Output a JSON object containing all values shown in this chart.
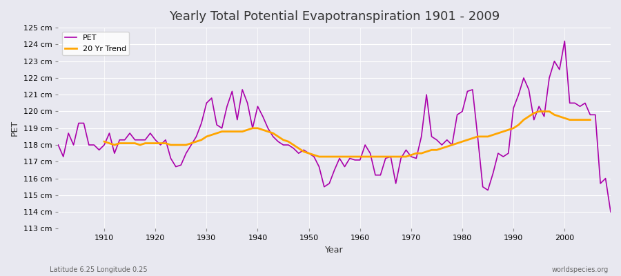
{
  "title": "Yearly Total Potential Evapotranspiration 1901 - 2009",
  "xlabel": "Year",
  "ylabel": "PET",
  "subtitle": "Latitude 6.25 Longitude 0.25",
  "watermark": "worldspecies.org",
  "pet_color": "#AA00AA",
  "trend_color": "#FFA500",
  "background_color": "#E8E8F0",
  "grid_color": "#FFFFFF",
  "ylim": [
    113,
    125
  ],
  "xlim": [
    1901,
    2009
  ],
  "ytick_labels": [
    "113 cm",
    "114 cm",
    "115 cm",
    "116 cm",
    "117 cm",
    "118 cm",
    "119 cm",
    "120 cm",
    "121 cm",
    "122 cm",
    "123 cm",
    "124 cm",
    "125 cm"
  ],
  "years": [
    1901,
    1902,
    1903,
    1904,
    1905,
    1906,
    1907,
    1908,
    1909,
    1910,
    1911,
    1912,
    1913,
    1914,
    1915,
    1916,
    1917,
    1918,
    1919,
    1920,
    1921,
    1922,
    1923,
    1924,
    1925,
    1926,
    1927,
    1928,
    1929,
    1930,
    1931,
    1932,
    1933,
    1934,
    1935,
    1936,
    1937,
    1938,
    1939,
    1940,
    1941,
    1942,
    1943,
    1944,
    1945,
    1946,
    1947,
    1948,
    1949,
    1950,
    1951,
    1952,
    1953,
    1954,
    1955,
    1956,
    1957,
    1958,
    1959,
    1960,
    1961,
    1962,
    1963,
    1964,
    1965,
    1966,
    1967,
    1968,
    1969,
    1970,
    1971,
    1972,
    1973,
    1974,
    1975,
    1976,
    1977,
    1978,
    1979,
    1980,
    1981,
    1982,
    1983,
    1984,
    1985,
    1986,
    1987,
    1988,
    1989,
    1990,
    1991,
    1992,
    1993,
    1994,
    1995,
    1996,
    1997,
    1998,
    1999,
    2000,
    2001,
    2002,
    2003,
    2004,
    2005,
    2006,
    2007,
    2008,
    2009
  ],
  "pet_values": [
    118.0,
    117.3,
    118.7,
    118.0,
    119.3,
    119.3,
    118.0,
    118.0,
    117.7,
    118.0,
    118.7,
    117.5,
    118.3,
    118.3,
    118.7,
    118.3,
    118.3,
    118.3,
    118.7,
    118.3,
    118.0,
    118.3,
    117.2,
    116.7,
    116.8,
    117.5,
    118.0,
    118.5,
    119.3,
    120.5,
    120.8,
    119.2,
    119.0,
    120.3,
    121.2,
    119.5,
    121.3,
    120.5,
    119.0,
    120.3,
    119.7,
    119.0,
    118.5,
    118.2,
    118.0,
    118.0,
    117.8,
    117.5,
    117.7,
    117.5,
    117.3,
    116.7,
    115.5,
    115.7,
    116.5,
    117.2,
    116.7,
    117.2,
    117.1,
    117.1,
    118.0,
    117.5,
    116.2,
    116.2,
    117.2,
    117.3,
    115.7,
    117.2,
    117.7,
    117.3,
    117.2,
    118.5,
    121.0,
    118.5,
    118.3,
    118.0,
    118.3,
    118.0,
    119.8,
    120.0,
    121.2,
    121.3,
    118.5,
    115.5,
    115.3,
    116.3,
    117.5,
    117.3,
    117.5,
    120.2,
    121.0,
    122.0,
    121.3,
    119.5,
    120.3,
    119.7,
    122.0,
    123.0,
    122.5,
    124.2,
    120.5,
    120.5,
    120.3,
    120.5,
    119.8,
    119.8,
    115.7,
    116.0,
    114.0
  ],
  "trend_years": [
    1910,
    1911,
    1912,
    1913,
    1914,
    1915,
    1916,
    1917,
    1918,
    1919,
    1920,
    1921,
    1922,
    1923,
    1924,
    1925,
    1926,
    1927,
    1928,
    1929,
    1930,
    1931,
    1932,
    1933,
    1934,
    1935,
    1936,
    1937,
    1938,
    1939,
    1940,
    1941,
    1942,
    1943,
    1944,
    1945,
    1946,
    1947,
    1948,
    1949,
    1950,
    1951,
    1952,
    1953,
    1954,
    1955,
    1956,
    1957,
    1958,
    1959,
    1960,
    1961,
    1962,
    1963,
    1964,
    1965,
    1966,
    1967,
    1968,
    1969,
    1970,
    1971,
    1972,
    1973,
    1974,
    1975,
    1976,
    1977,
    1978,
    1979,
    1980,
    1981,
    1982,
    1983,
    1984,
    1985,
    1986,
    1987,
    1988,
    1989,
    1990,
    1991,
    1992,
    1993,
    1994,
    1995,
    1996,
    1997,
    1998,
    1999,
    2000,
    2001,
    2002,
    2003,
    2004,
    2005
  ],
  "trend_values": [
    118.2,
    118.1,
    118.0,
    118.1,
    118.1,
    118.1,
    118.1,
    118.0,
    118.1,
    118.1,
    118.1,
    118.1,
    118.1,
    118.0,
    118.0,
    118.0,
    118.0,
    118.1,
    118.2,
    118.3,
    118.5,
    118.6,
    118.7,
    118.8,
    118.8,
    118.8,
    118.8,
    118.8,
    118.9,
    119.0,
    119.0,
    118.9,
    118.8,
    118.7,
    118.5,
    118.3,
    118.2,
    118.0,
    117.8,
    117.6,
    117.5,
    117.4,
    117.3,
    117.3,
    117.3,
    117.3,
    117.3,
    117.3,
    117.3,
    117.3,
    117.3,
    117.3,
    117.3,
    117.3,
    117.3,
    117.3,
    117.3,
    117.3,
    117.3,
    117.3,
    117.4,
    117.5,
    117.5,
    117.6,
    117.7,
    117.7,
    117.8,
    117.9,
    118.0,
    118.1,
    118.2,
    118.3,
    118.4,
    118.5,
    118.5,
    118.5,
    118.6,
    118.7,
    118.8,
    118.9,
    119.0,
    119.2,
    119.5,
    119.7,
    119.9,
    120.0,
    120.0,
    120.0,
    119.8,
    119.7,
    119.6,
    119.5,
    119.5,
    119.5,
    119.5,
    119.5
  ]
}
